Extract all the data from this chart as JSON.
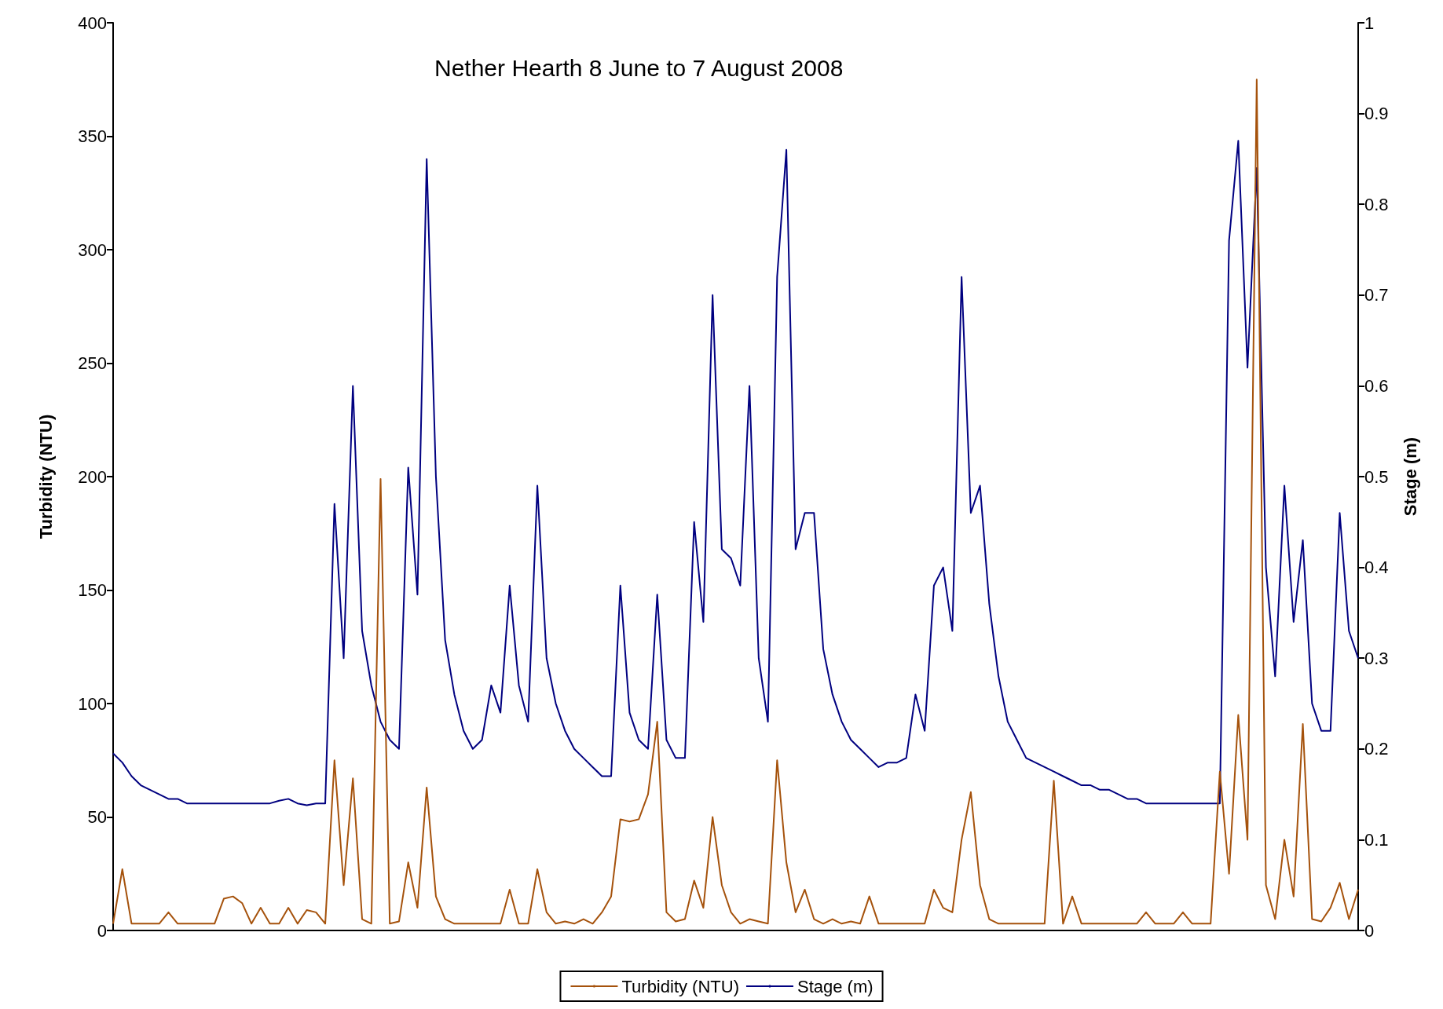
{
  "chart_data": {
    "type": "line",
    "title": "Nether Hearth 8 June to 7 August 2008",
    "ylabel": "Turbidity (NTU)",
    "y2label": "Stage (m)",
    "categories": [
      null,
      null,
      null,
      null,
      null,
      null,
      null,
      null,
      null,
      null,
      null,
      null,
      null,
      null,
      null,
      null,
      null,
      null,
      null,
      null,
      null,
      null,
      null,
      null,
      null,
      null,
      null,
      null,
      null,
      null,
      null,
      null,
      null,
      null,
      null,
      null,
      null,
      null,
      null,
      null,
      null,
      null,
      null,
      null,
      null,
      null,
      null,
      null,
      null,
      null,
      null,
      null,
      null,
      null,
      null,
      null,
      null,
      null,
      null,
      null,
      null,
      null,
      null,
      null,
      null,
      null,
      null,
      null,
      null,
      null,
      null,
      null,
      null,
      null,
      null,
      null,
      null,
      null,
      null,
      null,
      null,
      null,
      null,
      null,
      null,
      null,
      null,
      null,
      null,
      null,
      null,
      null,
      null,
      null,
      null,
      null,
      null,
      null,
      null,
      null,
      null,
      null,
      null,
      null,
      null,
      null,
      null,
      null,
      null,
      null,
      null,
      null,
      null,
      null,
      null,
      null,
      null,
      null,
      null,
      null,
      null,
      null,
      null,
      null,
      null,
      null,
      null,
      null,
      null,
      null,
      null,
      null,
      null,
      null,
      null,
      null
    ],
    "series": [
      {
        "name": "Turbidity (NTU)",
        "color": "#a5520c",
        "values": [
          3,
          27,
          3,
          3,
          3,
          3,
          8,
          3,
          3,
          3,
          3,
          3,
          14,
          15,
          12,
          3,
          10,
          3,
          3,
          10,
          3,
          9,
          8,
          3,
          75,
          20,
          67,
          5,
          3,
          199,
          3,
          4,
          30,
          10,
          63,
          15,
          5,
          3,
          3,
          3,
          3,
          3,
          3,
          18,
          3,
          3,
          27,
          8,
          3,
          4,
          3,
          5,
          3,
          8,
          15,
          49,
          48,
          49,
          60,
          92,
          8,
          4,
          5,
          22,
          10,
          50,
          20,
          8,
          3,
          5,
          4,
          3,
          75,
          30,
          8,
          18,
          5,
          3,
          5,
          3,
          4,
          3,
          15,
          3,
          3,
          3,
          3,
          3,
          3,
          18,
          10,
          8,
          40,
          61,
          20,
          5,
          3,
          3,
          3,
          3,
          3,
          3,
          66,
          3,
          15,
          3,
          3,
          3,
          3,
          3,
          3,
          3,
          8,
          3,
          3,
          3,
          8,
          3,
          3,
          3,
          70,
          25,
          95,
          40,
          375,
          20,
          5,
          40,
          15,
          91,
          5,
          4,
          10,
          21,
          5,
          18
        ]
      },
      {
        "name": "Stage (m)",
        "color": "#000080",
        "axis": "y2",
        "values": [
          0.195,
          0.185,
          0.17,
          0.16,
          0.155,
          0.15,
          0.145,
          0.145,
          0.14,
          0.14,
          0.14,
          0.14,
          0.14,
          0.14,
          0.14,
          0.14,
          0.14,
          0.14,
          0.143,
          0.145,
          0.14,
          0.138,
          0.14,
          0.14,
          0.47,
          0.3,
          0.6,
          0.33,
          0.27,
          0.23,
          0.21,
          0.2,
          0.51,
          0.37,
          0.85,
          0.5,
          0.32,
          0.26,
          0.22,
          0.2,
          0.21,
          0.27,
          0.24,
          0.38,
          0.27,
          0.23,
          0.49,
          0.3,
          0.25,
          0.22,
          0.2,
          0.19,
          0.18,
          0.17,
          0.17,
          0.38,
          0.24,
          0.21,
          0.2,
          0.37,
          0.21,
          0.19,
          0.19,
          0.45,
          0.34,
          0.7,
          0.42,
          0.41,
          0.38,
          0.6,
          0.3,
          0.23,
          0.72,
          0.86,
          0.42,
          0.46,
          0.46,
          0.31,
          0.26,
          0.23,
          0.21,
          0.2,
          0.19,
          0.18,
          0.185,
          0.185,
          0.19,
          0.26,
          0.22,
          0.38,
          0.4,
          0.33,
          0.72,
          0.46,
          0.49,
          0.36,
          0.28,
          0.23,
          0.21,
          0.19,
          0.185,
          0.18,
          0.175,
          0.17,
          0.165,
          0.16,
          0.16,
          0.155,
          0.155,
          0.15,
          0.145,
          0.145,
          0.14,
          0.14,
          0.14,
          0.14,
          0.14,
          0.14,
          0.14,
          0.14,
          0.14,
          0.76,
          0.87,
          0.62,
          0.84,
          0.4,
          0.28,
          0.49,
          0.34,
          0.43,
          0.25,
          0.22,
          0.22,
          0.46,
          0.33,
          0.3
        ]
      }
    ],
    "ylim": [
      0,
      400
    ],
    "yticks": [
      0,
      50,
      100,
      150,
      200,
      250,
      300,
      350,
      400
    ],
    "y2lim": [
      0,
      1
    ],
    "y2ticks": [
      0,
      0.1,
      0.2,
      0.3,
      0.4,
      0.5,
      0.6,
      0.7,
      0.8,
      0.9,
      1
    ],
    "grid": false,
    "legend": "bottom",
    "marker": "none",
    "line_style": "solid"
  }
}
